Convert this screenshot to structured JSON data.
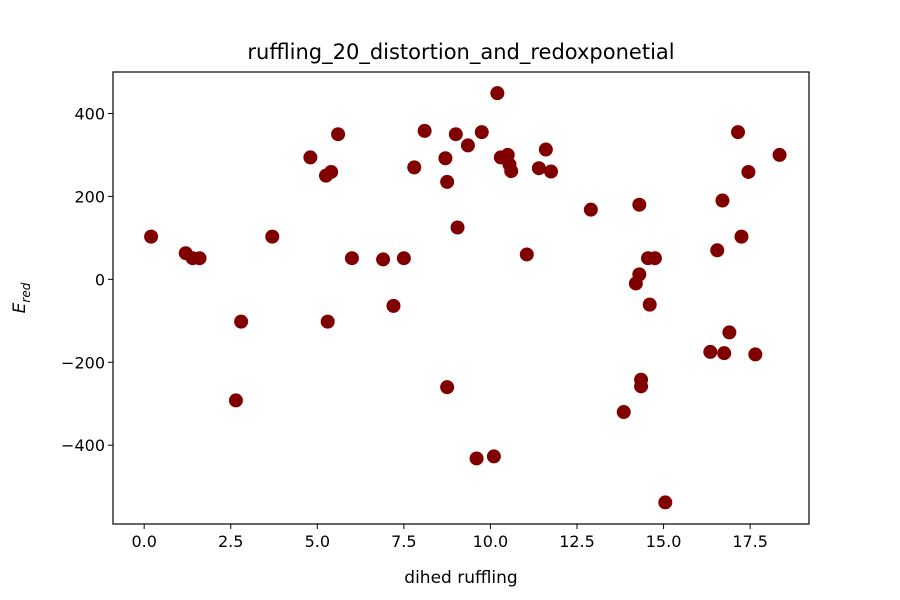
{
  "chart_data": {
    "type": "scatter",
    "title": "ruffling_20_distortion_and_redoxponetial",
    "xlabel": "dihed ruffling",
    "ylabel_main": "E",
    "ylabel_sub": "red",
    "xlim": [
      -0.9,
      19.2
    ],
    "ylim": [
      -590,
      500
    ],
    "x_ticks": [
      0.0,
      2.5,
      5.0,
      7.5,
      10.0,
      12.5,
      15.0,
      17.5
    ],
    "x_tick_labels": [
      "0.0",
      "2.5",
      "5.0",
      "7.5",
      "10.0",
      "12.5",
      "15.0",
      "17.5"
    ],
    "y_ticks": [
      400,
      200,
      0,
      -200,
      -400
    ],
    "y_tick_labels": [
      "400",
      "200",
      "0",
      "−200",
      "−400"
    ],
    "marker_color": "#800000",
    "points": [
      {
        "x": 0.2,
        "y": 103
      },
      {
        "x": 1.2,
        "y": 63
      },
      {
        "x": 1.4,
        "y": 51
      },
      {
        "x": 1.6,
        "y": 51
      },
      {
        "x": 2.65,
        "y": -292
      },
      {
        "x": 2.8,
        "y": -102
      },
      {
        "x": 3.7,
        "y": 103
      },
      {
        "x": 4.8,
        "y": 294
      },
      {
        "x": 5.25,
        "y": 250
      },
      {
        "x": 5.4,
        "y": 259
      },
      {
        "x": 5.3,
        "y": -102
      },
      {
        "x": 5.6,
        "y": 350
      },
      {
        "x": 6.0,
        "y": 51
      },
      {
        "x": 6.9,
        "y": 48
      },
      {
        "x": 7.2,
        "y": -64
      },
      {
        "x": 7.5,
        "y": 51
      },
      {
        "x": 7.8,
        "y": 270
      },
      {
        "x": 8.1,
        "y": 358
      },
      {
        "x": 8.7,
        "y": 292
      },
      {
        "x": 8.75,
        "y": 235
      },
      {
        "x": 8.75,
        "y": -260
      },
      {
        "x": 9.0,
        "y": 350
      },
      {
        "x": 9.05,
        "y": 125
      },
      {
        "x": 9.35,
        "y": 323
      },
      {
        "x": 9.6,
        "y": -432
      },
      {
        "x": 9.75,
        "y": 355
      },
      {
        "x": 10.1,
        "y": -427
      },
      {
        "x": 10.2,
        "y": 449
      },
      {
        "x": 10.3,
        "y": 294
      },
      {
        "x": 10.5,
        "y": 300
      },
      {
        "x": 10.55,
        "y": 277
      },
      {
        "x": 10.6,
        "y": 261
      },
      {
        "x": 11.05,
        "y": 60
      },
      {
        "x": 11.4,
        "y": 268
      },
      {
        "x": 11.6,
        "y": 313
      },
      {
        "x": 11.75,
        "y": 260
      },
      {
        "x": 12.9,
        "y": 168
      },
      {
        "x": 13.85,
        "y": -320
      },
      {
        "x": 14.2,
        "y": -10
      },
      {
        "x": 14.3,
        "y": 12
      },
      {
        "x": 14.3,
        "y": 180
      },
      {
        "x": 14.35,
        "y": -242
      },
      {
        "x": 14.35,
        "y": -258
      },
      {
        "x": 14.55,
        "y": 51
      },
      {
        "x": 14.6,
        "y": -61
      },
      {
        "x": 14.75,
        "y": 51
      },
      {
        "x": 15.05,
        "y": -538
      },
      {
        "x": 16.35,
        "y": -175
      },
      {
        "x": 16.55,
        "y": 70
      },
      {
        "x": 16.7,
        "y": 190
      },
      {
        "x": 16.75,
        "y": -178
      },
      {
        "x": 16.9,
        "y": -128
      },
      {
        "x": 17.15,
        "y": 355
      },
      {
        "x": 17.25,
        "y": 103
      },
      {
        "x": 17.45,
        "y": 259
      },
      {
        "x": 17.65,
        "y": -181
      },
      {
        "x": 18.35,
        "y": 300
      }
    ]
  }
}
